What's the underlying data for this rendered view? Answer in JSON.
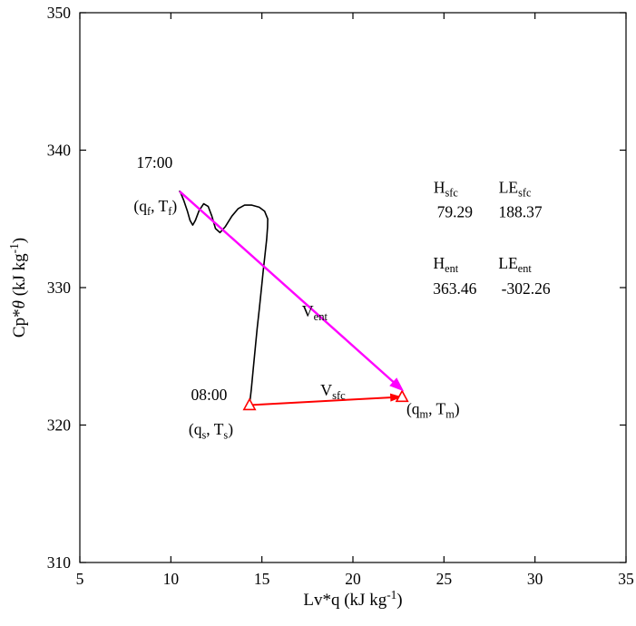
{
  "chart_data": {
    "type": "line",
    "title": "",
    "xlabel_segs": [
      {
        "t": "Lv*q (kJ kg"
      },
      {
        "t": "-1",
        "sup": true
      },
      {
        "t": ")"
      }
    ],
    "ylabel_segs": [
      {
        "t": "Cp*"
      },
      {
        "t": "θ",
        "italic": true
      },
      {
        "t": " (kJ kg"
      },
      {
        "t": "-1",
        "sup": true
      },
      {
        "t": ")"
      }
    ],
    "xlim": [
      5,
      35
    ],
    "ylim": [
      310,
      350
    ],
    "xticks": [
      5,
      10,
      15,
      20,
      25,
      30,
      35
    ],
    "yticks": [
      310,
      320,
      330,
      340,
      350
    ],
    "grid": false,
    "legend": "none",
    "colors": {
      "trajectory": "#000000",
      "surface_vector": "#ff0000",
      "entrainment_vector": "#ff00ff",
      "axis": "#000000"
    },
    "series": [
      {
        "name": "diurnal-trajectory",
        "color": "#000000",
        "width": 1.6,
        "points": [
          [
            14.32,
            321.45
          ],
          [
            14.42,
            322.6
          ],
          [
            14.52,
            324.0
          ],
          [
            14.63,
            325.5
          ],
          [
            14.74,
            327.0
          ],
          [
            14.86,
            328.5
          ],
          [
            14.97,
            329.9
          ],
          [
            15.07,
            331.2
          ],
          [
            15.17,
            332.4
          ],
          [
            15.26,
            333.5
          ],
          [
            15.31,
            334.4
          ],
          [
            15.32,
            335.0
          ],
          [
            15.15,
            335.55
          ],
          [
            14.85,
            335.85
          ],
          [
            14.45,
            336.0
          ],
          [
            14.05,
            336.0
          ],
          [
            13.7,
            335.75
          ],
          [
            13.35,
            335.2
          ],
          [
            13.0,
            334.45
          ],
          [
            12.7,
            334.0
          ],
          [
            12.45,
            334.3
          ],
          [
            12.25,
            335.2
          ],
          [
            12.05,
            335.9
          ],
          [
            11.8,
            336.1
          ],
          [
            11.55,
            335.6
          ],
          [
            11.35,
            334.9
          ],
          [
            11.2,
            334.55
          ],
          [
            11.05,
            334.9
          ],
          [
            10.9,
            335.6
          ],
          [
            10.72,
            336.3
          ],
          [
            10.55,
            336.85
          ],
          [
            10.48,
            337.0
          ]
        ]
      }
    ],
    "vectors": [
      {
        "name": "v-sfc-arrow",
        "color": "#ff0000",
        "width": 2.0,
        "from": [
          14.32,
          321.45
        ],
        "to": [
          22.7,
          322.05
        ],
        "head": {
          "length": 13,
          "width": 9
        },
        "label": {
          "x": 18.9,
          "y": 322.15,
          "segs": [
            {
              "t": "V"
            },
            {
              "t": "sfc",
              "sub": true
            }
          ]
        },
        "markers": [
          {
            "x": 14.32,
            "y": 321.45,
            "shape": "triangle-up-open"
          },
          {
            "x": 22.7,
            "y": 322.05,
            "shape": "triangle-up-open"
          }
        ]
      },
      {
        "name": "v-ent-arrow",
        "color": "#ff00ff",
        "width": 2.4,
        "from": [
          10.48,
          337.0
        ],
        "to": [
          22.8,
          322.45
        ],
        "head": {
          "length": 16,
          "width": 12
        },
        "label": {
          "x": 17.9,
          "y": 327.9,
          "segs": [
            {
              "t": "V"
            },
            {
              "t": "ent",
              "sub": true
            }
          ]
        },
        "markers": []
      }
    ],
    "annotations": [
      {
        "name": "time-label-1700",
        "x": 9.1,
        "y": 338.7,
        "segs": [
          {
            "t": "17:00"
          }
        ]
      },
      {
        "name": "qf-tf-label",
        "x": 9.15,
        "y": 335.55,
        "segs": [
          {
            "t": "(q"
          },
          {
            "t": "f",
            "sub": true
          },
          {
            "t": ", T"
          },
          {
            "t": "f",
            "sub": true
          },
          {
            "t": ")"
          }
        ]
      },
      {
        "name": "time-label-0800",
        "x": 12.1,
        "y": 321.8,
        "segs": [
          {
            "t": "08:00"
          }
        ]
      },
      {
        "name": "qs-ts-label",
        "x": 12.2,
        "y": 319.3,
        "segs": [
          {
            "t": "(q"
          },
          {
            "t": "s",
            "sub": true
          },
          {
            "t": ", T"
          },
          {
            "t": "s",
            "sub": true
          },
          {
            "t": ")"
          }
        ]
      },
      {
        "name": "qm-tm-label",
        "x": 24.4,
        "y": 320.8,
        "segs": [
          {
            "t": "(q"
          },
          {
            "t": "m",
            "sub": true
          },
          {
            "t": ", T"
          },
          {
            "t": "m",
            "sub": true
          },
          {
            "t": ")"
          }
        ]
      },
      {
        "name": "h-sfc-header",
        "x": 25.1,
        "y": 336.9,
        "segs": [
          {
            "t": "H"
          },
          {
            "t": "sfc",
            "sub": true
          }
        ]
      },
      {
        "name": "le-sfc-header",
        "x": 28.9,
        "y": 336.9,
        "segs": [
          {
            "t": "LE"
          },
          {
            "t": "sfc",
            "sub": true
          }
        ]
      },
      {
        "name": "h-sfc-value",
        "x": 25.6,
        "y": 335.1,
        "segs": [
          {
            "t": "79.29"
          }
        ]
      },
      {
        "name": "le-sfc-value",
        "x": 29.2,
        "y": 335.1,
        "segs": [
          {
            "t": "188.37"
          }
        ]
      },
      {
        "name": "h-ent-header",
        "x": 25.1,
        "y": 331.4,
        "segs": [
          {
            "t": "H"
          },
          {
            "t": "ent",
            "sub": true
          }
        ]
      },
      {
        "name": "le-ent-header",
        "x": 28.9,
        "y": 331.4,
        "segs": [
          {
            "t": "LE"
          },
          {
            "t": "ent",
            "sub": true
          }
        ]
      },
      {
        "name": "h-ent-value",
        "x": 25.6,
        "y": 329.55,
        "segs": [
          {
            "t": "363.46"
          }
        ]
      },
      {
        "name": "le-ent-value",
        "x": 29.5,
        "y": 329.55,
        "segs": [
          {
            "t": "-302.26"
          }
        ]
      }
    ],
    "flux_values": {
      "H_sfc": 79.29,
      "LE_sfc": 188.37,
      "H_ent": 363.46,
      "LE_ent": -302.26
    }
  }
}
